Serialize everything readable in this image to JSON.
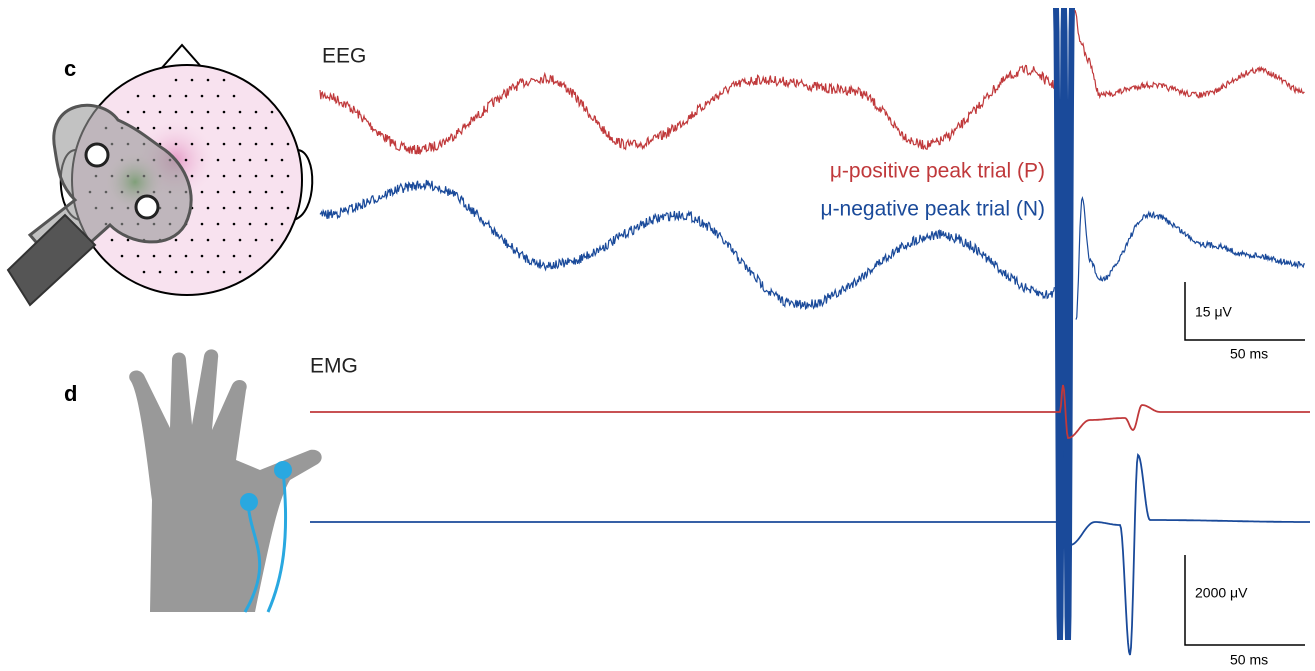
{
  "panels": [
    {
      "label": "c",
      "title": "EEG",
      "legend": [
        "μ-positive peak trial (P)",
        "μ-negative peak trial (N)"
      ],
      "scale_bar": {
        "amplitude": "15 μV",
        "time": "50 ms"
      }
    },
    {
      "label": "d",
      "title": "EMG",
      "scale_bar": {
        "amplitude": "2000 μV",
        "time": "50 ms"
      }
    }
  ]
}
